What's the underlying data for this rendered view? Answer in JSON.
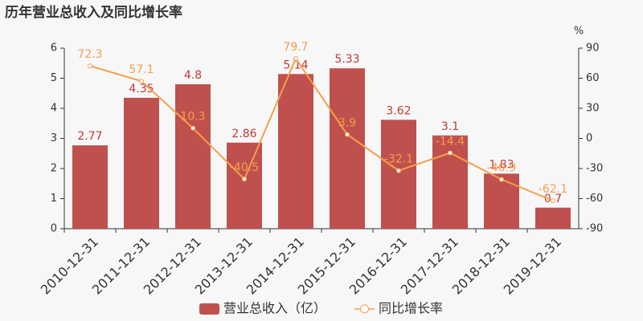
{
  "chart_data": {
    "type": "bar",
    "title": "历年营业总收入及同比增长率",
    "y2_unit": "%",
    "categories": [
      "2010-12-31",
      "2011-12-31",
      "2012-12-31",
      "2013-12-31",
      "2014-12-31",
      "2015-12-31",
      "2016-12-31",
      "2017-12-31",
      "2018-12-31",
      "2019-12-31"
    ],
    "series": [
      {
        "name": "营业总收入（亿）",
        "type": "bar",
        "color": "#c0504d",
        "label_color": "#c23a36",
        "values": [
          2.77,
          4.35,
          4.8,
          2.86,
          5.14,
          5.33,
          3.62,
          3.1,
          1.83,
          0.7
        ]
      },
      {
        "name": "同比增长率",
        "type": "line",
        "axis": "y2",
        "color": "#f3a04b",
        "values": [
          72.3,
          57.1,
          10.3,
          -40.5,
          79.7,
          3.9,
          -32.1,
          -14.4,
          -40.9,
          -62.1
        ]
      }
    ],
    "ylim": [
      0,
      6
    ],
    "yticks": [
      0,
      1,
      2,
      3,
      4,
      5,
      6
    ],
    "y2lim": [
      -90,
      90
    ],
    "y2ticks": [
      -90,
      -60,
      -30,
      0,
      30,
      60,
      90
    ],
    "legend": "bottom"
  }
}
